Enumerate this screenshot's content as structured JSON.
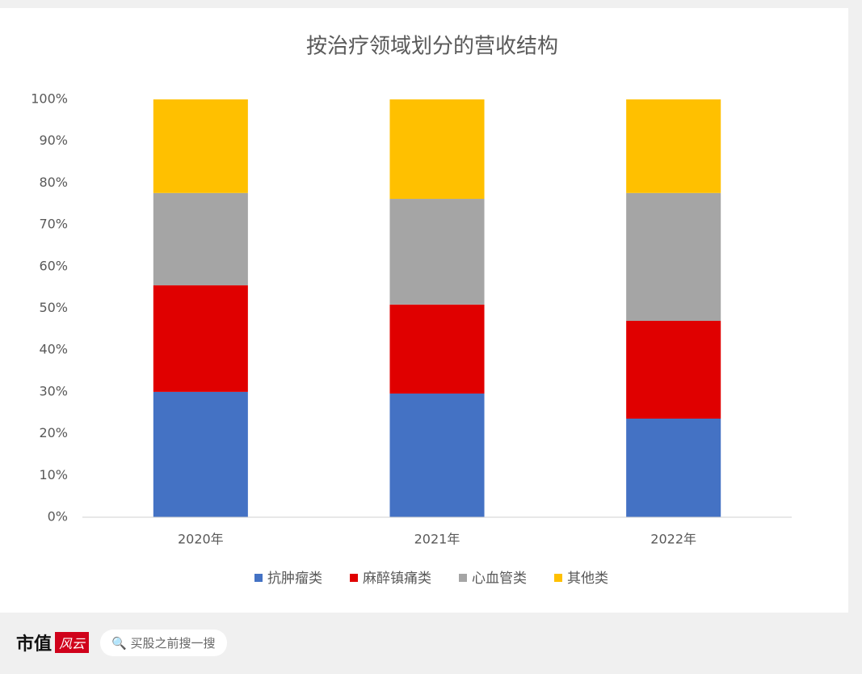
{
  "chart_data": {
    "type": "stacked_bar",
    "title": "按治疗领域划分的营收结构",
    "categories": [
      "2020年",
      "2021年",
      "2022年"
    ],
    "series": [
      {
        "name": "抗肿瘤类",
        "color": "#4472c4",
        "values": [
          30.0,
          29.6,
          23.6
        ]
      },
      {
        "name": "麻醉镇痛类",
        "color": "#e00000",
        "values": [
          25.5,
          21.3,
          23.4
        ]
      },
      {
        "name": "心血管类",
        "color": "#a5a5a5",
        "values": [
          22.1,
          25.3,
          30.6
        ]
      },
      {
        "name": "其他类",
        "color": "#ffc000",
        "values": [
          22.4,
          23.8,
          22.4
        ]
      }
    ],
    "ylim": [
      0,
      100
    ],
    "yticks": [
      {
        "value": 0,
        "label": "0%"
      },
      {
        "value": 10,
        "label": "10%"
      },
      {
        "value": 20,
        "label": "20%"
      },
      {
        "value": 30,
        "label": "30%"
      },
      {
        "value": 40,
        "label": "40%"
      },
      {
        "value": 50,
        "label": "50%"
      },
      {
        "value": 60,
        "label": "60%"
      },
      {
        "value": 70,
        "label": "70%"
      },
      {
        "value": 80,
        "label": "80%"
      },
      {
        "value": 90,
        "label": "90%"
      },
      {
        "value": 100,
        "label": "100%"
      }
    ],
    "grid": false,
    "legend": "bottom"
  },
  "footer": {
    "brand": "市值",
    "logo": "风云",
    "search": "买股之前搜一搜"
  }
}
